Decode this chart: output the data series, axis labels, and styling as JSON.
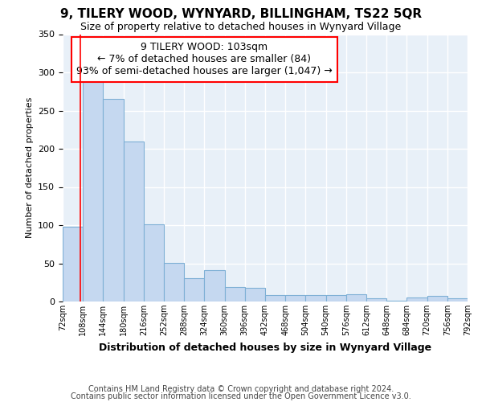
{
  "title": "9, TILERY WOOD, WYNYARD, BILLINGHAM, TS22 5QR",
  "subtitle": "Size of property relative to detached houses in Wynyard Village",
  "xlabel": "Distribution of detached houses by size in Wynyard Village",
  "ylabel": "Number of detached properties",
  "footnote1": "Contains HM Land Registry data © Crown copyright and database right 2024.",
  "footnote2": "Contains public sector information licensed under the Open Government Licence v3.0.",
  "annotation_line1": "9 TILERY WOOD: 103sqm",
  "annotation_line2": "← 7% of detached houses are smaller (84)",
  "annotation_line3": "93% of semi-detached houses are larger (1,047) →",
  "bar_color": "#c5d8f0",
  "bar_edge_color": "#7eb0d5",
  "background_color": "#e8f0f8",
  "red_line_x": 103,
  "bin_edges": [
    72,
    108,
    144,
    180,
    216,
    252,
    288,
    324,
    360,
    396,
    432,
    468,
    504,
    540,
    576,
    612,
    648,
    684,
    720,
    756,
    792
  ],
  "bar_heights": [
    98,
    288,
    265,
    210,
    101,
    51,
    31,
    41,
    19,
    18,
    8,
    8,
    8,
    8,
    10,
    4,
    1,
    5,
    7,
    4
  ],
  "ylim": [
    0,
    350
  ],
  "yticks": [
    0,
    50,
    100,
    150,
    200,
    250,
    300,
    350
  ],
  "title_fontsize": 11,
  "subtitle_fontsize": 9,
  "xlabel_fontsize": 9,
  "ylabel_fontsize": 8,
  "annotation_fontsize": 9,
  "footnote_fontsize": 7
}
